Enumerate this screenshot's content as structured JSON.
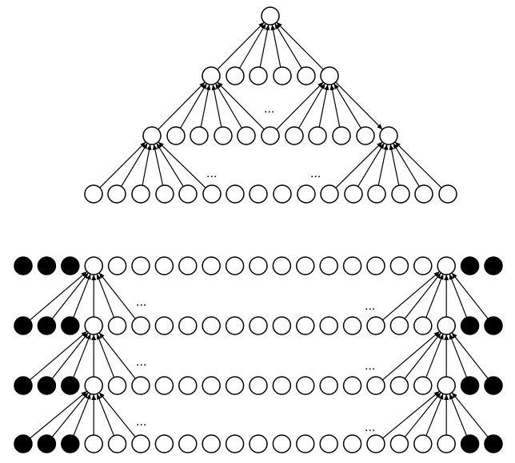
{
  "top_diagram": {
    "ellipsis_labels": [
      "...",
      "...",
      "..."
    ]
  },
  "bottom_diagram": {
    "ellipsis_labels": [
      "...",
      "...",
      "...",
      "...",
      "...",
      "..."
    ]
  },
  "colors": {
    "filled_node": "#000000",
    "open_node": "#ffffff",
    "stroke": "#000000"
  }
}
